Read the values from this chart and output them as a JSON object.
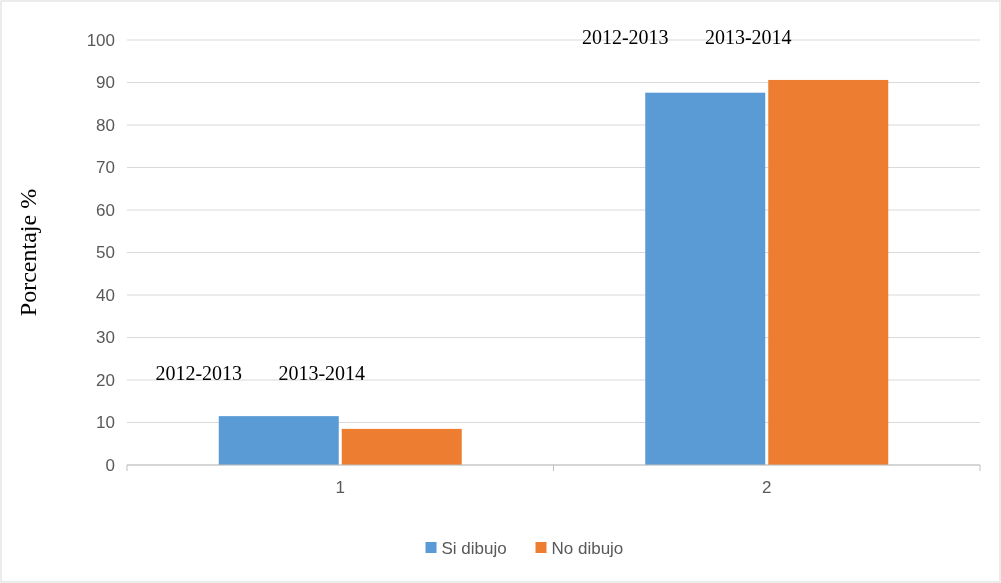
{
  "chart_data": {
    "type": "bar",
    "ylabel": "Porcentaje %",
    "categories": [
      "1",
      "2"
    ],
    "series": [
      {
        "name": "Si dibujo",
        "color": "#5b9bd5",
        "values": [
          11.5,
          87.6
        ]
      },
      {
        "name": "No dibujo",
        "color": "#ed7d31",
        "values": [
          8.5,
          90.6
        ]
      }
    ],
    "ylim": [
      0,
      100
    ],
    "yticks": [
      0,
      10,
      20,
      30,
      40,
      50,
      60,
      70,
      80,
      90,
      100
    ],
    "grid": "y",
    "legend": "bottom",
    "annotations": [
      "2012-2013",
      "2013-2014",
      "2012-2013",
      "2013-2014"
    ]
  }
}
